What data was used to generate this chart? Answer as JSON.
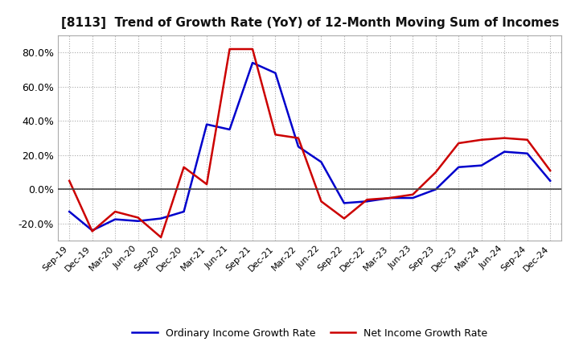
{
  "title": "[8113]  Trend of Growth Rate (YoY) of 12-Month Moving Sum of Incomes",
  "x_labels": [
    "Sep-19",
    "Dec-19",
    "Mar-20",
    "Jun-20",
    "Sep-20",
    "Dec-20",
    "Mar-21",
    "Jun-21",
    "Sep-21",
    "Dec-21",
    "Mar-22",
    "Jun-22",
    "Sep-22",
    "Dec-22",
    "Mar-23",
    "Jun-23",
    "Sep-23",
    "Dec-23",
    "Mar-24",
    "Jun-24",
    "Sep-24",
    "Dec-24"
  ],
  "ordinary_income": [
    -0.13,
    -0.24,
    -0.175,
    -0.185,
    -0.17,
    -0.13,
    0.38,
    0.35,
    0.74,
    0.68,
    0.25,
    0.16,
    -0.08,
    -0.07,
    -0.05,
    -0.05,
    0.0,
    0.13,
    0.14,
    0.22,
    0.21,
    0.05
  ],
  "net_income": [
    0.05,
    -0.245,
    -0.13,
    -0.165,
    -0.28,
    0.13,
    0.03,
    0.82,
    0.82,
    0.32,
    0.3,
    -0.07,
    -0.17,
    -0.06,
    -0.05,
    -0.03,
    0.1,
    0.27,
    0.29,
    0.3,
    0.29,
    0.11
  ],
  "ordinary_color": "#0000cc",
  "net_color": "#cc0000",
  "ylim": [
    -0.3,
    0.9
  ],
  "yticks": [
    -0.2,
    0.0,
    0.2,
    0.4,
    0.6,
    0.8
  ],
  "legend_ordinary": "Ordinary Income Growth Rate",
  "legend_net": "Net Income Growth Rate",
  "bg_color": "#ffffff",
  "grid_color": "#aaaaaa"
}
